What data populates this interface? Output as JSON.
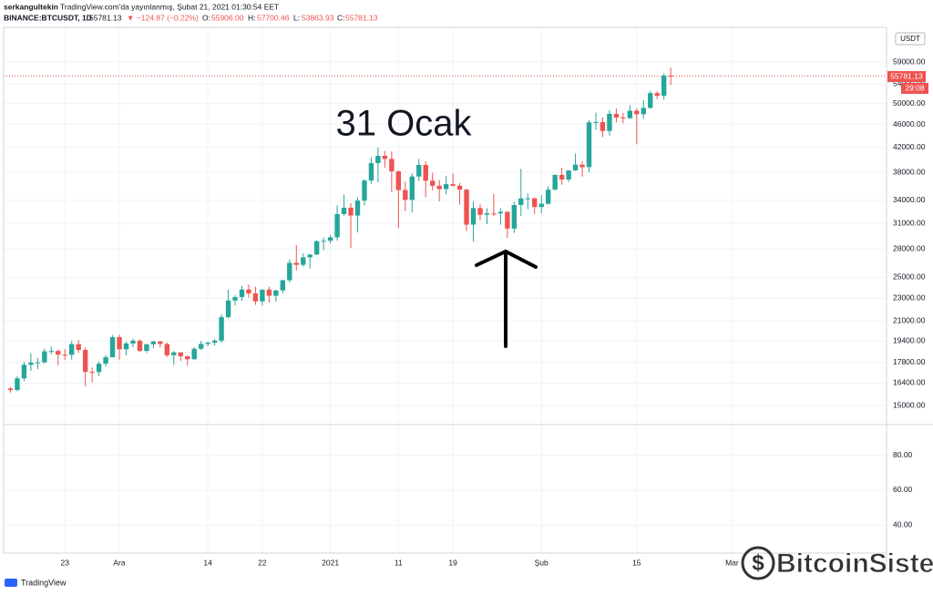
{
  "header": {
    "author": "serkangultekin",
    "published": "TradingView.com'da yayınlanmış, Şubat 21, 2021 01:30:54 EET",
    "symbol": "BINANCE:BTCUSDT, 1D",
    "last": "55781.13",
    "change": "▼ −124.87 (−0.22%)",
    "o_label": "O:",
    "o": "55906.00",
    "h_label": "H:",
    "h": "57700.46",
    "l_label": "L:",
    "l": "53863.93",
    "c_label": "C:",
    "c": "55781.13"
  },
  "price_label": {
    "currency": "USDT",
    "price": "55781.13",
    "countdown": "29:08"
  },
  "branding": {
    "watermark": "BitcoinSistemi",
    "logo": "TradingView"
  },
  "chart_data": {
    "type": "candlestick",
    "log_scale": true,
    "grid": true,
    "annotation": "31 Ocak",
    "up_color": "#26a69a",
    "down_color": "#ef5350",
    "xlim": [
      -1,
      128.7
    ],
    "xticks": [
      {
        "value": 8,
        "label": "23"
      },
      {
        "value": 16,
        "label": "Ara"
      },
      {
        "value": 29,
        "label": "14"
      },
      {
        "value": 37,
        "label": "22"
      },
      {
        "value": 47,
        "label": "2021"
      },
      {
        "value": 57,
        "label": "11"
      },
      {
        "value": 65,
        "label": "19"
      },
      {
        "value": 78,
        "label": "Şub"
      },
      {
        "value": 92,
        "label": "15"
      },
      {
        "value": 106,
        "label": "Mar"
      }
    ],
    "ylim": [
      13900,
      67000
    ],
    "yticks": [
      {
        "value": 59000,
        "label": "59000.00"
      },
      {
        "value": 54000,
        "label": "54000.00"
      },
      {
        "value": 50000,
        "label": "50000.00"
      },
      {
        "value": 46000,
        "label": "46000.00"
      },
      {
        "value": 42000,
        "label": "42000.00"
      },
      {
        "value": 38000,
        "label": "38000.00"
      },
      {
        "value": 34000,
        "label": "34000.00"
      },
      {
        "value": 31000,
        "label": "31000.00"
      },
      {
        "value": 28000,
        "label": "28000.00"
      },
      {
        "value": 25000,
        "label": "25000.00"
      },
      {
        "value": 23000,
        "label": "23000.00"
      },
      {
        "value": 21000,
        "label": "21000.00"
      },
      {
        "value": 19400,
        "label": "19400.00"
      },
      {
        "value": 17800,
        "label": "17800.00"
      },
      {
        "value": 16400,
        "label": "16400.00"
      },
      {
        "value": 15000,
        "label": "15000.00"
      }
    ],
    "lower_ylim": [
      24,
      97
    ],
    "lower_yticks": [
      {
        "value": 80,
        "label": "80.00"
      },
      {
        "value": 60,
        "label": "60.00"
      },
      {
        "value": 40,
        "label": "40.00"
      }
    ],
    "open": [
      16054,
      15955,
      16716,
      17645,
      17804,
      17817,
      18621,
      18642,
      18370,
      18364,
      19160,
      18720,
      17150,
      17139,
      17720,
      18185,
      19696,
      18765,
      19205,
      19422,
      18650,
      19147,
      19359,
      19166,
      18324,
      18541,
      18254,
      18036,
      18808,
      19175,
      19273,
      19426,
      21335,
      22797,
      23107,
      23821,
      23455,
      22719,
      23810,
      23232,
      23729,
      24712,
      26493,
      26281,
      27079,
      27385,
      28875,
      28923,
      29332,
      32178,
      33000,
      31989,
      33950,
      36770,
      39432,
      40586,
      40088,
      38150,
      35410,
      34049,
      37371,
      39145,
      36737,
      36025,
      35548,
      36250,
      36025,
      35469,
      30852,
      32950,
      32078,
      32259,
      32254,
      32464,
      30362,
      33368,
      34247,
      34262,
      33092,
      33518,
      35472,
      37620,
      36936,
      38289,
      39181,
      38796,
      46374,
      46420,
      44807,
      47968,
      47298,
      47156,
      48580,
      47911,
      49133,
      52117,
      51553,
      55906
    ],
    "high": [
      16142,
      16880,
      17858,
      18477,
      18142,
      18815,
      18965,
      18750,
      18770,
      19418,
      19484,
      18915,
      17457,
      17880,
      18345,
      19863,
      19888,
      19342,
      19566,
      19527,
      19177,
      19420,
      19420,
      19294,
      18639,
      18557,
      18292,
      18948,
      19411,
      19349,
      19570,
      21560,
      23800,
      23285,
      24171,
      24295,
      24102,
      23837,
      24100,
      23794,
      24789,
      26867,
      28422,
      27500,
      27410,
      28996,
      29300,
      29600,
      33300,
      34778,
      33600,
      34360,
      36939,
      40365,
      41950,
      41380,
      41350,
      38264,
      36628,
      37850,
      40100,
      39747,
      37950,
      36852,
      37469,
      37850,
      36415,
      35600,
      33826,
      33456,
      32945,
      34875,
      32921,
      32557,
      33783,
      38531,
      34933,
      34342,
      34717,
      35984,
      37662,
      38708,
      38310,
      40955,
      39700,
      46794,
      48200,
      47310,
      48678,
      48985,
      48150,
      49707,
      49010,
      50650,
      52618,
      52530,
      56368,
      57700.46
    ],
    "low": [
      15795,
      15870,
      16531,
      17214,
      17335,
      17740,
      18400,
      17610,
      18000,
      18018,
      18500,
      16188,
      16438,
      16865,
      17518,
      18185,
      18001,
      18330,
      18925,
      18565,
      18500,
      18857,
      18902,
      18200,
      17650,
      17911,
      17572,
      18020,
      18711,
      19000,
      19050,
      19278,
      21230,
      22350,
      22750,
      23060,
      22400,
      22353,
      22600,
      22703,
      23433,
      24500,
      25700,
      26101,
      25880,
      27320,
      27850,
      28624,
      28946,
      31962,
      28130,
      29900,
      33288,
      36300,
      36500,
      38720,
      35111,
      30420,
      32531,
      32380,
      36701,
      34408,
      35357,
      33850,
      34800,
      35844,
      33400,
      30071,
      28850,
      31390,
      30900,
      31910,
      30837,
      29241,
      29842,
      31915,
      32825,
      32171,
      32297,
      33419,
      35362,
      36161,
      36570,
      38215,
      37351,
      37988,
      45000,
      43727,
      43994,
      46400,
      46202,
      47014,
      42500,
      47000,
      48947,
      50901,
      50710,
      53863.93
    ],
    "close": [
      15955,
      16716,
      17645,
      17804,
      17817,
      18621,
      18642,
      18370,
      18364,
      19160,
      18720,
      17150,
      17139,
      17720,
      18185,
      19696,
      18765,
      19205,
      19422,
      18650,
      19147,
      19359,
      19166,
      18324,
      18541,
      18254,
      18036,
      18808,
      19175,
      19273,
      19426,
      21335,
      22797,
      23107,
      23821,
      23455,
      22719,
      23810,
      23232,
      23729,
      24712,
      26493,
      26281,
      27079,
      27385,
      28875,
      28923,
      29332,
      32178,
      33000,
      31989,
      33950,
      36769,
      39432,
      40582,
      40088,
      38150,
      35404,
      34051,
      37371,
      39144,
      36742,
      36013,
      35547,
      36248,
      36025,
      35468,
      30850,
      32945,
      32078,
      32260,
      32254,
      32467,
      30366,
      33364,
      34252,
      34262,
      33092,
      33526,
      35466,
      37618,
      36936,
      38290,
      39186,
      38795,
      46374,
      46420,
      44807,
      47969,
      47287,
      47153,
      48577,
      47911,
      49133,
      52119,
      51552,
      55906,
      55781.13
    ]
  }
}
